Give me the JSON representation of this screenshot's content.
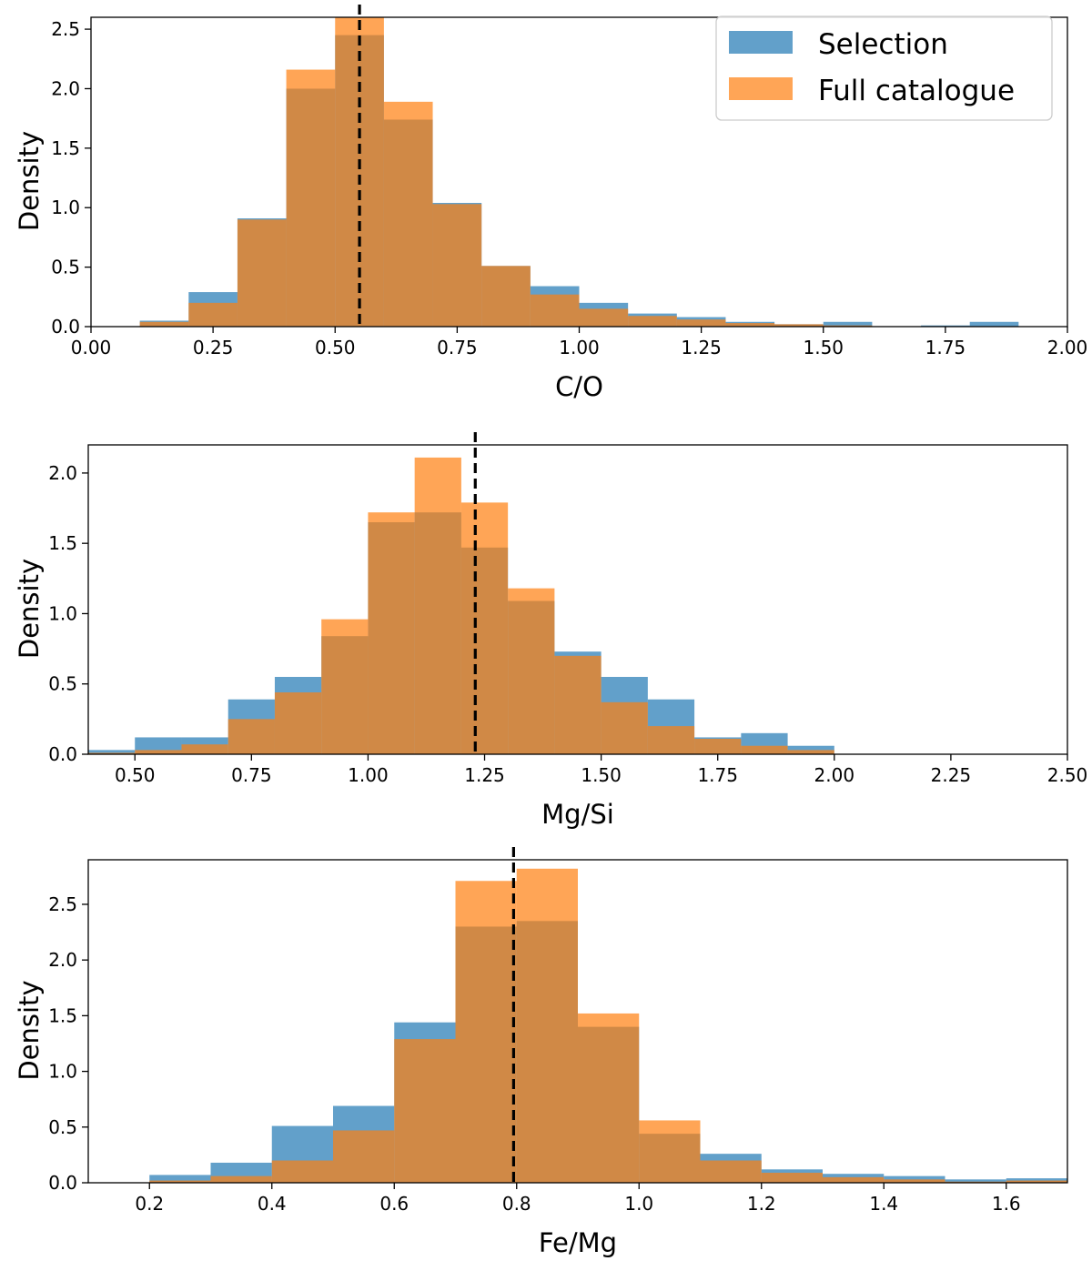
{
  "colors": {
    "selection": "#1f77b4",
    "full_catalogue": "#ff7f0e",
    "median_line": "#000000"
  },
  "legend": {
    "placement": "upper-right of first panel",
    "entries": [
      "Selection",
      "Full catalogue"
    ]
  },
  "chart_data": [
    {
      "type": "bar",
      "subtype": "overlaid-histogram",
      "xlabel": "C/O",
      "ylabel": "Density",
      "xlim": [
        0.0,
        2.0
      ],
      "ylim": [
        0,
        2.6
      ],
      "xticks": [
        "0.00",
        "0.25",
        "0.50",
        "0.75",
        "1.00",
        "1.25",
        "1.50",
        "1.75",
        "2.00"
      ],
      "xtick_values": [
        0,
        0.25,
        0.5,
        0.75,
        1.0,
        1.25,
        1.5,
        1.75,
        2.0
      ],
      "yticks": [
        "0.0",
        "0.5",
        "1.0",
        "1.5",
        "2.0",
        "2.5"
      ],
      "ytick_values": [
        0,
        0.5,
        1.0,
        1.5,
        2.0,
        2.5
      ],
      "bin_edges": [
        0.1,
        0.2,
        0.3,
        0.4,
        0.5,
        0.6,
        0.7,
        0.8,
        0.9,
        1.0,
        1.1,
        1.2,
        1.3,
        1.4,
        1.5,
        1.6,
        1.7,
        1.8,
        1.9
      ],
      "series": [
        {
          "name": "Selection",
          "values": [
            0.05,
            0.29,
            0.91,
            2.0,
            2.45,
            1.74,
            1.04,
            0.51,
            0.34,
            0.2,
            0.11,
            0.08,
            0.04,
            0.02,
            0.04,
            0.0,
            0.01,
            0.04
          ]
        },
        {
          "name": "Full catalogue",
          "values": [
            0.04,
            0.2,
            0.9,
            2.16,
            2.6,
            1.89,
            1.03,
            0.51,
            0.27,
            0.15,
            0.09,
            0.06,
            0.03,
            0.02,
            0.01,
            0.0,
            0.0,
            0.0
          ]
        }
      ],
      "median": 0.55,
      "legend": true
    },
    {
      "type": "bar",
      "subtype": "overlaid-histogram",
      "xlabel": "Mg/Si",
      "ylabel": "Density",
      "xlim": [
        0.4,
        2.5
      ],
      "ylim": [
        0,
        2.2
      ],
      "xticks": [
        "0.50",
        "0.75",
        "1.00",
        "1.25",
        "1.50",
        "1.75",
        "2.00",
        "2.25",
        "2.50"
      ],
      "xtick_values": [
        0.5,
        0.75,
        1.0,
        1.25,
        1.5,
        1.75,
        2.0,
        2.25,
        2.5
      ],
      "yticks": [
        "0.0",
        "0.5",
        "1.0",
        "1.5",
        "2.0"
      ],
      "ytick_values": [
        0,
        0.5,
        1.0,
        1.5,
        2.0
      ],
      "bin_edges": [
        0.4,
        0.5,
        0.6,
        0.7,
        0.8,
        0.9,
        1.0,
        1.1,
        1.2,
        1.3,
        1.4,
        1.5,
        1.6,
        1.7,
        1.8,
        1.9,
        2.0
      ],
      "series": [
        {
          "name": "Selection",
          "values": [
            0.03,
            0.12,
            0.12,
            0.39,
            0.55,
            0.84,
            1.65,
            1.72,
            1.47,
            1.09,
            0.73,
            0.55,
            0.39,
            0.12,
            0.15,
            0.06
          ]
        },
        {
          "name": "Full catalogue",
          "values": [
            0.01,
            0.03,
            0.07,
            0.25,
            0.44,
            0.96,
            1.72,
            2.11,
            1.79,
            1.18,
            0.7,
            0.37,
            0.2,
            0.11,
            0.06,
            0.03
          ]
        }
      ],
      "median": 1.23,
      "legend": false
    },
    {
      "type": "bar",
      "subtype": "overlaid-histogram",
      "xlabel": "Fe/Mg",
      "ylabel": "Density",
      "xlim": [
        0.1,
        1.7
      ],
      "ylim": [
        0,
        2.9
      ],
      "xticks": [
        "0.2",
        "0.4",
        "0.6",
        "0.8",
        "1.0",
        "1.2",
        "1.4",
        "1.6"
      ],
      "xtick_values": [
        0.2,
        0.4,
        0.6,
        0.8,
        1.0,
        1.2,
        1.4,
        1.6
      ],
      "yticks": [
        "0.0",
        "0.5",
        "1.0",
        "1.5",
        "2.0",
        "2.5"
      ],
      "ytick_values": [
        0,
        0.5,
        1.0,
        1.5,
        2.0,
        2.5
      ],
      "bin_edges": [
        0.2,
        0.3,
        0.4,
        0.5,
        0.6,
        0.7,
        0.8,
        0.9,
        1.0,
        1.1,
        1.2,
        1.3,
        1.4,
        1.5,
        1.6,
        1.7
      ],
      "series": [
        {
          "name": "Selection",
          "values": [
            0.07,
            0.18,
            0.51,
            0.69,
            1.44,
            2.3,
            2.35,
            1.4,
            0.44,
            0.26,
            0.12,
            0.08,
            0.06,
            0.03,
            0.04
          ]
        },
        {
          "name": "Full catalogue",
          "values": [
            0.02,
            0.06,
            0.2,
            0.47,
            1.29,
            2.71,
            2.82,
            1.52,
            0.56,
            0.2,
            0.09,
            0.05,
            0.03,
            0.01,
            0.02
          ]
        }
      ],
      "median": 0.795,
      "legend": false
    }
  ]
}
